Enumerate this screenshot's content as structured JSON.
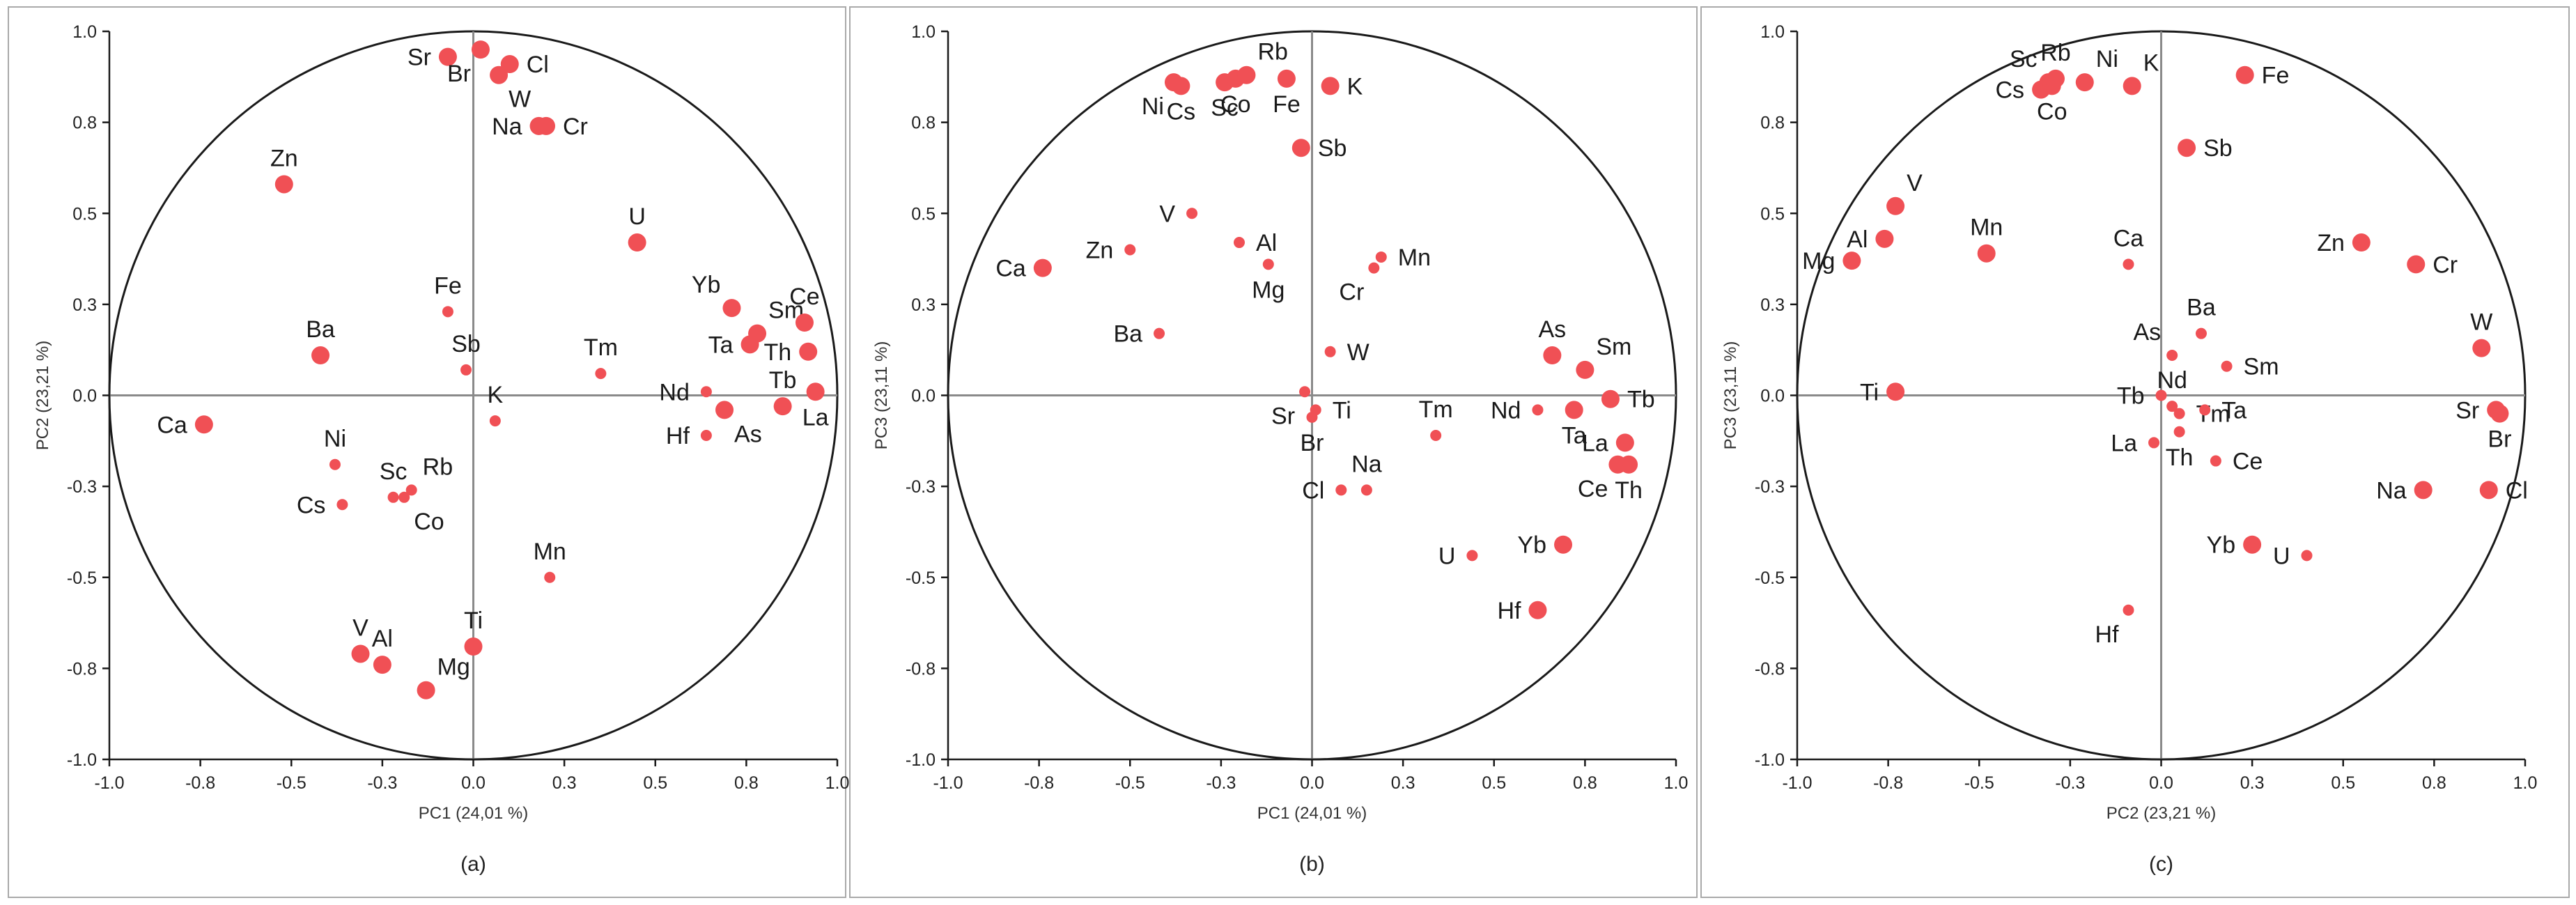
{
  "colors": {
    "point": "#f05055",
    "axis": "#1a1a1a",
    "zero_line": "#8a8a8a",
    "circle": "#1a1a1a",
    "frame": "#a9a9a9"
  },
  "chart_data": [
    {
      "type": "scatter",
      "caption": "(a)",
      "xlabel": "PC1 (24,01 %)",
      "ylabel": "PC2 (23,21 %)",
      "xlim": [
        -1.0,
        1.0
      ],
      "ylim": [
        -1.0,
        1.0
      ],
      "xticks": [
        "-1.0",
        "-0.8",
        "-0.5",
        "-0.3",
        "0.0",
        "0.3",
        "0.5",
        "0.8",
        "1.0"
      ],
      "yticks": [
        "-1.0",
        "-0.8",
        "-0.5",
        "-0.3",
        "0.0",
        "0.3",
        "0.5",
        "0.8",
        "1.0"
      ],
      "unit_circle": true,
      "points": [
        {
          "label": "Sr",
          "x": -0.07,
          "y": 0.93,
          "size": "large",
          "label_pos": "left"
        },
        {
          "label": "Br",
          "x": 0.02,
          "y": 0.95,
          "size": "large",
          "label_pos": "below-left"
        },
        {
          "label": "Cl",
          "x": 0.1,
          "y": 0.91,
          "size": "large",
          "label_pos": "right"
        },
        {
          "label": "W",
          "x": 0.07,
          "y": 0.88,
          "size": "large",
          "label_pos": "below-right"
        },
        {
          "label": "Na",
          "x": 0.18,
          "y": 0.74,
          "size": "large",
          "label_pos": "left"
        },
        {
          "label": "Cr",
          "x": 0.2,
          "y": 0.74,
          "size": "large",
          "label_pos": "right"
        },
        {
          "label": "Zn",
          "x": -0.52,
          "y": 0.58,
          "size": "large",
          "label_pos": "above"
        },
        {
          "label": "U",
          "x": 0.45,
          "y": 0.42,
          "size": "large",
          "label_pos": "above"
        },
        {
          "label": "Fe",
          "x": -0.07,
          "y": 0.23,
          "size": "small",
          "label_pos": "above"
        },
        {
          "label": "Yb",
          "x": 0.71,
          "y": 0.24,
          "size": "large",
          "label_pos": "above-left"
        },
        {
          "label": "Sm",
          "x": 0.78,
          "y": 0.17,
          "size": "large",
          "label_pos": "above-right"
        },
        {
          "label": "Ce",
          "x": 0.91,
          "y": 0.2,
          "size": "large",
          "label_pos": "above"
        },
        {
          "label": "Ba",
          "x": -0.42,
          "y": 0.11,
          "size": "large",
          "label_pos": "above"
        },
        {
          "label": "Ta",
          "x": 0.76,
          "y": 0.14,
          "size": "large",
          "label_pos": "left"
        },
        {
          "label": "Th",
          "x": 0.92,
          "y": 0.12,
          "size": "large",
          "label_pos": "left"
        },
        {
          "label": "Sb",
          "x": -0.02,
          "y": 0.07,
          "size": "small",
          "label_pos": "above"
        },
        {
          "label": "Tm",
          "x": 0.35,
          "y": 0.06,
          "size": "small",
          "label_pos": "above"
        },
        {
          "label": "Nd",
          "x": 0.64,
          "y": 0.01,
          "size": "small",
          "label_pos": "left"
        },
        {
          "label": "Tb",
          "x": 0.85,
          "y": -0.03,
          "size": "large",
          "label_pos": "above"
        },
        {
          "label": "La",
          "x": 0.94,
          "y": 0.01,
          "size": "large",
          "label_pos": "below"
        },
        {
          "label": "K",
          "x": 0.06,
          "y": -0.07,
          "size": "small",
          "label_pos": "above"
        },
        {
          "label": "Ca",
          "x": -0.74,
          "y": -0.08,
          "size": "large",
          "label_pos": "left"
        },
        {
          "label": "Hf",
          "x": 0.64,
          "y": -0.11,
          "size": "small",
          "label_pos": "left"
        },
        {
          "label": "As",
          "x": 0.69,
          "y": -0.04,
          "size": "large",
          "label_pos": "below-right"
        },
        {
          "label": "Ni",
          "x": -0.38,
          "y": -0.19,
          "size": "small",
          "label_pos": "above"
        },
        {
          "label": "Rb",
          "x": -0.17,
          "y": -0.26,
          "size": "small",
          "label_pos": "above-right"
        },
        {
          "label": "Sc",
          "x": -0.22,
          "y": -0.28,
          "size": "small",
          "label_pos": "above"
        },
        {
          "label": "Co",
          "x": -0.19,
          "y": -0.28,
          "size": "small",
          "label_pos": "below-right"
        },
        {
          "label": "Cs",
          "x": -0.36,
          "y": -0.3,
          "size": "small",
          "label_pos": "left"
        },
        {
          "label": "Mn",
          "x": 0.21,
          "y": -0.5,
          "size": "small",
          "label_pos": "above"
        },
        {
          "label": "Ti",
          "x": 0.0,
          "y": -0.69,
          "size": "large",
          "label_pos": "above"
        },
        {
          "label": "V",
          "x": -0.31,
          "y": -0.71,
          "size": "large",
          "label_pos": "above"
        },
        {
          "label": "Al",
          "x": -0.25,
          "y": -0.74,
          "size": "large",
          "label_pos": "above"
        },
        {
          "label": "Mg",
          "x": -0.13,
          "y": -0.81,
          "size": "large",
          "label_pos": "above-right"
        }
      ]
    },
    {
      "type": "scatter",
      "caption": "(b)",
      "xlabel": "PC1 (24,01 %)",
      "ylabel": "PC3 (23,11 %)",
      "xlim": [
        -1.0,
        1.0
      ],
      "ylim": [
        -1.0,
        1.0
      ],
      "xticks": [
        "-1.0",
        "-0.8",
        "-0.5",
        "-0.3",
        "0.0",
        "0.3",
        "0.5",
        "0.8",
        "1.0"
      ],
      "yticks": [
        "-1.0",
        "-0.8",
        "-0.5",
        "-0.3",
        "0.0",
        "0.3",
        "0.5",
        "0.8",
        "1.0"
      ],
      "unit_circle": true,
      "points": [
        {
          "label": "Ni",
          "x": -0.38,
          "y": 0.86,
          "size": "large",
          "label_pos": "below-left"
        },
        {
          "label": "Cs",
          "x": -0.36,
          "y": 0.85,
          "size": "large",
          "label_pos": "below"
        },
        {
          "label": "Sc",
          "x": -0.24,
          "y": 0.86,
          "size": "large",
          "label_pos": "below"
        },
        {
          "label": "Co",
          "x": -0.21,
          "y": 0.87,
          "size": "large",
          "label_pos": "below"
        },
        {
          "label": "Rb",
          "x": -0.18,
          "y": 0.88,
          "size": "large",
          "label_pos": "above-right"
        },
        {
          "label": "Fe",
          "x": -0.07,
          "y": 0.87,
          "size": "large",
          "label_pos": "below"
        },
        {
          "label": "K",
          "x": 0.05,
          "y": 0.85,
          "size": "large",
          "label_pos": "right"
        },
        {
          "label": "Sb",
          "x": -0.03,
          "y": 0.68,
          "size": "large",
          "label_pos": "right"
        },
        {
          "label": "V",
          "x": -0.33,
          "y": 0.5,
          "size": "small",
          "label_pos": "left"
        },
        {
          "label": "Al",
          "x": -0.2,
          "y": 0.42,
          "size": "small",
          "label_pos": "right"
        },
        {
          "label": "Zn",
          "x": -0.5,
          "y": 0.4,
          "size": "small",
          "label_pos": "left"
        },
        {
          "label": "Mg",
          "x": -0.12,
          "y": 0.36,
          "size": "small",
          "label_pos": "below"
        },
        {
          "label": "Ca",
          "x": -0.74,
          "y": 0.35,
          "size": "large",
          "label_pos": "left"
        },
        {
          "label": "Mn",
          "x": 0.19,
          "y": 0.38,
          "size": "small",
          "label_pos": "right"
        },
        {
          "label": "Cr",
          "x": 0.17,
          "y": 0.35,
          "size": "small",
          "label_pos": "below-left"
        },
        {
          "label": "Ba",
          "x": -0.42,
          "y": 0.17,
          "size": "small",
          "label_pos": "left"
        },
        {
          "label": "W",
          "x": 0.05,
          "y": 0.12,
          "size": "small",
          "label_pos": "right"
        },
        {
          "label": "As",
          "x": 0.66,
          "y": 0.11,
          "size": "large",
          "label_pos": "above"
        },
        {
          "label": "Sm",
          "x": 0.75,
          "y": 0.07,
          "size": "large",
          "label_pos": "above-right"
        },
        {
          "label": "Tb",
          "x": 0.82,
          "y": -0.01,
          "size": "large",
          "label_pos": "right"
        },
        {
          "label": "Sr",
          "x": -0.02,
          "y": 0.01,
          "size": "small",
          "label_pos": "below-left"
        },
        {
          "label": "Ti",
          "x": 0.01,
          "y": -0.04,
          "size": "small",
          "label_pos": "right"
        },
        {
          "label": "Br",
          "x": 0.0,
          "y": -0.06,
          "size": "small",
          "label_pos": "below"
        },
        {
          "label": "Nd",
          "x": 0.62,
          "y": -0.04,
          "size": "small",
          "label_pos": "left"
        },
        {
          "label": "Ta",
          "x": 0.72,
          "y": -0.04,
          "size": "large",
          "label_pos": "below"
        },
        {
          "label": "Tm",
          "x": 0.34,
          "y": -0.11,
          "size": "small",
          "label_pos": "above"
        },
        {
          "label": "La",
          "x": 0.86,
          "y": -0.13,
          "size": "large",
          "label_pos": "left"
        },
        {
          "label": "Ce",
          "x": 0.84,
          "y": -0.19,
          "size": "large",
          "label_pos": "below-left"
        },
        {
          "label": "Th",
          "x": 0.87,
          "y": -0.19,
          "size": "large",
          "label_pos": "below"
        },
        {
          "label": "Na",
          "x": 0.15,
          "y": -0.26,
          "size": "small",
          "label_pos": "above"
        },
        {
          "label": "Cl",
          "x": 0.08,
          "y": -0.26,
          "size": "small",
          "label_pos": "left"
        },
        {
          "label": "Yb",
          "x": 0.69,
          "y": -0.41,
          "size": "large",
          "label_pos": "left"
        },
        {
          "label": "U",
          "x": 0.44,
          "y": -0.44,
          "size": "small",
          "label_pos": "left"
        },
        {
          "label": "Hf",
          "x": 0.62,
          "y": -0.59,
          "size": "large",
          "label_pos": "left"
        }
      ]
    },
    {
      "type": "scatter",
      "caption": "(c)",
      "xlabel": "PC2 (23,21 %)",
      "ylabel": "PC3 (23,11 %)",
      "xlim": [
        -1.0,
        1.0
      ],
      "ylim": [
        -1.0,
        1.0
      ],
      "xticks": [
        "-1.0",
        "-0.8",
        "-0.5",
        "-0.3",
        "0.0",
        "0.3",
        "0.5",
        "0.8",
        "1.0"
      ],
      "yticks": [
        "-1.0",
        "-0.8",
        "-0.5",
        "-0.3",
        "0.0",
        "0.3",
        "0.5",
        "0.8",
        "1.0"
      ],
      "unit_circle": true,
      "points": [
        {
          "label": "Sc",
          "x": -0.31,
          "y": 0.86,
          "size": "large",
          "label_pos": "above-left"
        },
        {
          "label": "Rb",
          "x": -0.29,
          "y": 0.87,
          "size": "large",
          "label_pos": "above"
        },
        {
          "label": "Cs",
          "x": -0.33,
          "y": 0.84,
          "size": "large",
          "label_pos": "left"
        },
        {
          "label": "Co",
          "x": -0.3,
          "y": 0.85,
          "size": "large",
          "label_pos": "below"
        },
        {
          "label": "Ni",
          "x": -0.21,
          "y": 0.86,
          "size": "large",
          "label_pos": "above-right"
        },
        {
          "label": "K",
          "x": -0.08,
          "y": 0.85,
          "size": "large",
          "label_pos": "above-right"
        },
        {
          "label": "Fe",
          "x": 0.23,
          "y": 0.88,
          "size": "large",
          "label_pos": "right"
        },
        {
          "label": "Sb",
          "x": 0.07,
          "y": 0.68,
          "size": "large",
          "label_pos": "right"
        },
        {
          "label": "V",
          "x": -0.73,
          "y": 0.52,
          "size": "large",
          "label_pos": "above-right"
        },
        {
          "label": "Al",
          "x": -0.76,
          "y": 0.43,
          "size": "large",
          "label_pos": "left"
        },
        {
          "label": "Mg",
          "x": -0.85,
          "y": 0.37,
          "size": "large",
          "label_pos": "left"
        },
        {
          "label": "Mn",
          "x": -0.48,
          "y": 0.39,
          "size": "large",
          "label_pos": "above"
        },
        {
          "label": "Ca",
          "x": -0.09,
          "y": 0.36,
          "size": "small",
          "label_pos": "above"
        },
        {
          "label": "Zn",
          "x": 0.55,
          "y": 0.42,
          "size": "large",
          "label_pos": "left"
        },
        {
          "label": "Cr",
          "x": 0.7,
          "y": 0.36,
          "size": "large",
          "label_pos": "right"
        },
        {
          "label": "Ba",
          "x": 0.11,
          "y": 0.17,
          "size": "small",
          "label_pos": "above"
        },
        {
          "label": "W",
          "x": 0.88,
          "y": 0.13,
          "size": "large",
          "label_pos": "above"
        },
        {
          "label": "Sm",
          "x": 0.18,
          "y": 0.08,
          "size": "small",
          "label_pos": "right"
        },
        {
          "label": "As",
          "x": 0.03,
          "y": 0.11,
          "size": "small",
          "label_pos": "above-left"
        },
        {
          "label": "Ti",
          "x": -0.73,
          "y": 0.01,
          "size": "large",
          "label_pos": "left"
        },
        {
          "label": "Nd",
          "x": 0.03,
          "y": -0.03,
          "size": "small",
          "label_pos": "above"
        },
        {
          "label": "Tb",
          "x": 0.0,
          "y": 0.0,
          "size": "small",
          "label_pos": "left"
        },
        {
          "label": "Tm",
          "x": 0.05,
          "y": -0.05,
          "size": "small",
          "label_pos": "right"
        },
        {
          "label": "Ta",
          "x": 0.12,
          "y": -0.04,
          "size": "small",
          "label_pos": "right"
        },
        {
          "label": "Sr",
          "x": 0.92,
          "y": -0.04,
          "size": "large",
          "label_pos": "left"
        },
        {
          "label": "Br",
          "x": 0.93,
          "y": -0.05,
          "size": "large",
          "label_pos": "below"
        },
        {
          "label": "La",
          "x": -0.02,
          "y": -0.13,
          "size": "small",
          "label_pos": "left"
        },
        {
          "label": "Th",
          "x": 0.05,
          "y": -0.1,
          "size": "small",
          "label_pos": "below"
        },
        {
          "label": "Ce",
          "x": 0.15,
          "y": -0.18,
          "size": "small",
          "label_pos": "right"
        },
        {
          "label": "Na",
          "x": 0.72,
          "y": -0.26,
          "size": "large",
          "label_pos": "left"
        },
        {
          "label": "Cl",
          "x": 0.9,
          "y": -0.26,
          "size": "large",
          "label_pos": "right"
        },
        {
          "label": "Yb",
          "x": 0.25,
          "y": -0.41,
          "size": "large",
          "label_pos": "left"
        },
        {
          "label": "U",
          "x": 0.4,
          "y": -0.44,
          "size": "small",
          "label_pos": "left"
        },
        {
          "label": "Hf",
          "x": -0.09,
          "y": -0.59,
          "size": "small",
          "label_pos": "below-left"
        }
      ]
    }
  ]
}
